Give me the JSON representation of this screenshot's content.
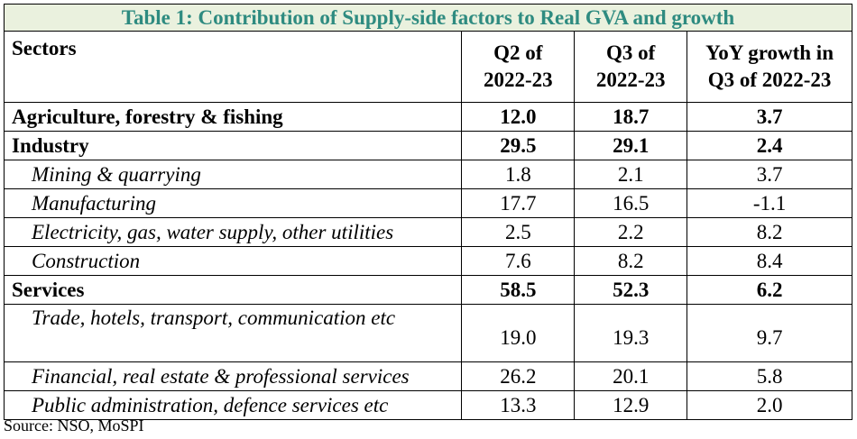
{
  "title": "Table 1: Contribution of Supply-side factors to Real GVA and growth",
  "headers": {
    "sectors": "Sectors",
    "q2": [
      "Q2 of",
      "2022-23"
    ],
    "q3": [
      "Q3 of",
      "2022-23"
    ],
    "yoy": [
      "YoY growth in",
      "Q3 of 2022-23"
    ]
  },
  "rows": [
    {
      "label": "Agriculture, forestry & fishing",
      "q2": "12.0",
      "q3": "18.7",
      "yoy": "3.7",
      "level": "main"
    },
    {
      "label": "Industry",
      "q2": "29.5",
      "q3": "29.1",
      "yoy": "2.4",
      "level": "main"
    },
    {
      "label": "Mining & quarrying",
      "q2": "1.8",
      "q3": "2.1",
      "yoy": "3.7",
      "level": "sub"
    },
    {
      "label": "Manufacturing",
      "q2": "17.7",
      "q3": "16.5",
      "yoy": "-1.1",
      "level": "sub"
    },
    {
      "label": "Electricity, gas, water supply, other utilities",
      "q2": "2.5",
      "q3": "2.2",
      "yoy": "8.2",
      "level": "sub"
    },
    {
      "label": "Construction",
      "q2": "7.6",
      "q3": "8.2",
      "yoy": "8.4",
      "level": "sub"
    },
    {
      "label": "Services",
      "q2": "58.5",
      "q3": "52.3",
      "yoy": "6.2",
      "level": "main"
    },
    {
      "label": "Trade, hotels, transport, communication etc",
      "q2": "19.0",
      "q3": "19.3",
      "yoy": "9.7",
      "level": "sub"
    },
    {
      "label": "Financial, real estate & professional services",
      "q2": "26.2",
      "q3": "20.1",
      "yoy": "5.8",
      "level": "sub"
    },
    {
      "label": "Public administration, defence services etc",
      "q2": "13.3",
      "q3": "12.9",
      "yoy": "2.0",
      "level": "sub"
    }
  ],
  "source": "Source: NSO, MoSPI",
  "colors": {
    "title_bg": "#eaf1de",
    "title_text": "#2e8b80"
  }
}
